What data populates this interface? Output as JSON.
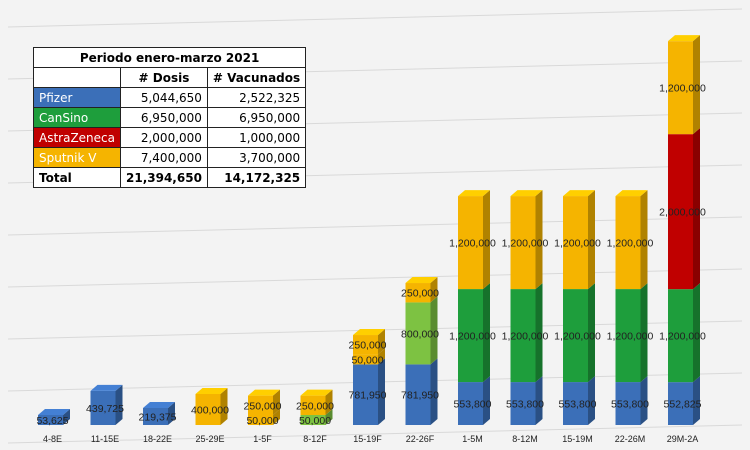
{
  "table": {
    "title": "Periodo enero-marzo 2021",
    "headers": [
      "# Dosis",
      "# Vacunados"
    ],
    "rows": [
      {
        "name": "Pfizer",
        "dosis": "5,044,650",
        "vacunados": "2,522,325",
        "color": "#3b6fb8"
      },
      {
        "name": "CanSino",
        "dosis": "6,950,000",
        "vacunados": "6,950,000",
        "color": "#1e9e3c"
      },
      {
        "name": "AstraZeneca",
        "dosis": "2,000,000",
        "vacunados": "1,000,000",
        "color": "#c00000"
      },
      {
        "name": "Sputnik V",
        "dosis": "7,400,000",
        "vacunados": "3,700,000",
        "color": "#f5b400"
      }
    ],
    "total": {
      "label": "Total",
      "dosis": "21,394,650",
      "vacunados": "14,172,325"
    }
  },
  "chart_data": {
    "type": "bar",
    "stacked": true,
    "grid": true,
    "categories": [
      "4-8E",
      "11-15E",
      "18-22E",
      "25-29E",
      "1-5F",
      "8-12F",
      "15-19F",
      "22-26F",
      "1-5M",
      "8-12M",
      "15-19M",
      "22-26M",
      "29M-2A"
    ],
    "colors": {
      "pfizer": "#3b6fb8",
      "cansino": "#1e9e3c",
      "cansino_light": "#7dc242",
      "astrazeneca": "#c00000",
      "sputnik": "#f5b400"
    },
    "bars": [
      {
        "segments": [
          {
            "value": 53625,
            "label": "53,625",
            "color": "#3b6fb8"
          }
        ]
      },
      {
        "segments": [
          {
            "value": 439725,
            "label": "439,725",
            "color": "#3b6fb8"
          }
        ]
      },
      {
        "segments": [
          {
            "value": 219375,
            "label": "219,375",
            "color": "#3b6fb8"
          }
        ]
      },
      {
        "segments": [
          {
            "value": 400000,
            "label": "400,000",
            "color": "#f5b400"
          }
        ]
      },
      {
        "segments": [
          {
            "value": 50000,
            "label": "50,000",
            "color": "#f5b400"
          },
          {
            "value": 250000,
            "label": "250,000",
            "color": "#f5b400"
          }
        ]
      },
      {
        "segments": [
          {
            "value": 50000,
            "label": "50,000",
            "color": "#7dc242"
          },
          {
            "value": 250000,
            "label": "250,000",
            "color": "#f5b400"
          }
        ]
      },
      {
        "segments": [
          {
            "value": 781950,
            "label": "781,950",
            "color": "#3b6fb8"
          },
          {
            "value": 50000,
            "label": "50,000",
            "color": "#f5b400"
          },
          {
            "value": 250000,
            "label": "250,000",
            "color": "#f5b400"
          }
        ]
      },
      {
        "segments": [
          {
            "value": 781950,
            "label": "781,950",
            "color": "#3b6fb8"
          },
          {
            "value": 800000,
            "label": "800,000",
            "color": "#7dc242"
          },
          {
            "value": 250000,
            "label": "250,000",
            "color": "#f5b400"
          }
        ]
      },
      {
        "segments": [
          {
            "value": 553800,
            "label": "553,800",
            "color": "#3b6fb8"
          },
          {
            "value": 1200000,
            "label": "1,200,000",
            "color": "#1e9e3c"
          },
          {
            "value": 1200000,
            "label": "1,200,000",
            "color": "#f5b400"
          }
        ]
      },
      {
        "segments": [
          {
            "value": 553800,
            "label": "553,800",
            "color": "#3b6fb8"
          },
          {
            "value": 1200000,
            "label": "1,200,000",
            "color": "#1e9e3c"
          },
          {
            "value": 1200000,
            "label": "1,200,000",
            "color": "#f5b400"
          }
        ]
      },
      {
        "segments": [
          {
            "value": 553800,
            "label": "553,800",
            "color": "#3b6fb8"
          },
          {
            "value": 1200000,
            "label": "1,200,000",
            "color": "#1e9e3c"
          },
          {
            "value": 1200000,
            "label": "1,200,000",
            "color": "#f5b400"
          }
        ]
      },
      {
        "segments": [
          {
            "value": 553800,
            "label": "553,800",
            "color": "#3b6fb8"
          },
          {
            "value": 1200000,
            "label": "1,200,000",
            "color": "#1e9e3c"
          },
          {
            "value": 1200000,
            "label": "1,200,000",
            "color": "#f5b400"
          }
        ]
      },
      {
        "segments": [
          {
            "value": 552825,
            "label": "552,825",
            "color": "#3b6fb8"
          },
          {
            "value": 1200000,
            "label": "1,200,000",
            "color": "#1e9e3c"
          },
          {
            "value": 2000000,
            "label": "2,000,000",
            "color": "#c00000"
          },
          {
            "value": 1200000,
            "label": "1,200,000",
            "color": "#f5b400"
          }
        ]
      }
    ]
  }
}
